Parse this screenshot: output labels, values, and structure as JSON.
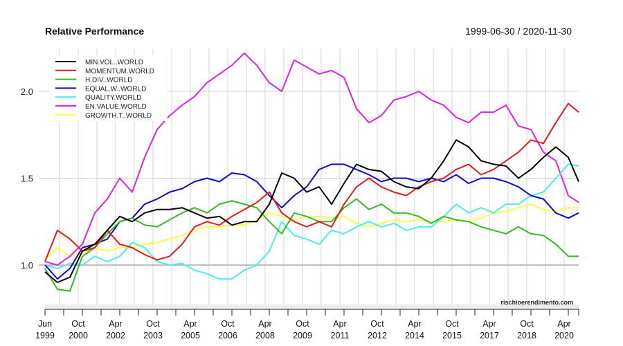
{
  "chart_data": {
    "type": "line",
    "title": "Relative Performance",
    "date_range": "1999-06-30 / 2020-11-30",
    "watermark": "rischioerendimento.com",
    "ylim": [
      0.78,
      2.25
    ],
    "yticks": [
      1.0,
      1.5,
      2.0
    ],
    "ytick_labels": [
      "1.0",
      "1.5",
      "2.0"
    ],
    "baseline": 1.0,
    "grid": true,
    "legend_position": "top-left",
    "xtick_labels": [
      [
        "Jun",
        "1999"
      ],
      [
        "Oct",
        "2000"
      ],
      [
        "Apr",
        "2002"
      ],
      [
        "Oct",
        "2003"
      ],
      [
        "Apr",
        "2005"
      ],
      [
        "Oct",
        "2006"
      ],
      [
        "Apr",
        "2008"
      ],
      [
        "Oct",
        "2009"
      ],
      [
        "Apr",
        "2011"
      ],
      [
        "Oct",
        "2012"
      ],
      [
        "Apr",
        "2014"
      ],
      [
        "Oct",
        "2015"
      ],
      [
        "Apr",
        "2017"
      ],
      [
        "Oct",
        "2018"
      ],
      [
        "Apr",
        "2020"
      ]
    ],
    "xtick_dates": [
      "1999-06",
      "2000-10",
      "2002-04",
      "2003-10",
      "2005-04",
      "2006-10",
      "2008-04",
      "2009-10",
      "2011-04",
      "2012-10",
      "2014-04",
      "2015-10",
      "2017-04",
      "2018-10",
      "2020-04"
    ],
    "x": [
      "1999-06",
      "1999-12",
      "2000-06",
      "2000-12",
      "2001-06",
      "2001-12",
      "2002-06",
      "2002-12",
      "2003-06",
      "2003-12",
      "2004-06",
      "2004-12",
      "2005-06",
      "2005-12",
      "2006-06",
      "2006-12",
      "2007-06",
      "2007-12",
      "2008-06",
      "2008-12",
      "2009-06",
      "2009-12",
      "2010-06",
      "2010-12",
      "2011-06",
      "2011-12",
      "2012-06",
      "2012-12",
      "2013-06",
      "2013-12",
      "2014-06",
      "2014-12",
      "2015-06",
      "2015-12",
      "2016-06",
      "2016-12",
      "2017-06",
      "2017-12",
      "2018-06",
      "2018-12",
      "2019-06",
      "2019-12",
      "2020-06",
      "2020-11"
    ],
    "series": [
      {
        "name": "MIN.VOL..WORLD",
        "color": "#000000",
        "values": [
          0.96,
          0.9,
          0.93,
          1.08,
          1.12,
          1.2,
          1.28,
          1.25,
          1.3,
          1.32,
          1.32,
          1.33,
          1.3,
          1.27,
          1.28,
          1.23,
          1.25,
          1.25,
          1.35,
          1.53,
          1.5,
          1.42,
          1.45,
          1.35,
          1.47,
          1.58,
          1.55,
          1.54,
          1.48,
          1.45,
          1.44,
          1.5,
          1.6,
          1.72,
          1.68,
          1.6,
          1.58,
          1.57,
          1.5,
          1.55,
          1.62,
          1.68,
          1.62,
          1.48
        ]
      },
      {
        "name": "MOMENTUM.WORLD",
        "color": "#e41a1c",
        "values": [
          1.02,
          1.2,
          1.15,
          1.08,
          1.1,
          1.2,
          1.12,
          1.1,
          1.06,
          1.03,
          1.05,
          1.12,
          1.22,
          1.25,
          1.23,
          1.28,
          1.32,
          1.36,
          1.42,
          1.3,
          1.25,
          1.22,
          1.25,
          1.22,
          1.35,
          1.45,
          1.5,
          1.45,
          1.42,
          1.4,
          1.45,
          1.48,
          1.5,
          1.55,
          1.58,
          1.52,
          1.55,
          1.6,
          1.65,
          1.72,
          1.7,
          1.82,
          1.93,
          1.88
        ]
      },
      {
        "name": "H.DIV..WORLD",
        "color": "#33bb22",
        "values": [
          0.98,
          0.86,
          0.85,
          1.05,
          1.1,
          1.18,
          1.25,
          1.27,
          1.23,
          1.22,
          1.26,
          1.3,
          1.33,
          1.3,
          1.35,
          1.37,
          1.35,
          1.33,
          1.25,
          1.18,
          1.3,
          1.28,
          1.25,
          1.25,
          1.33,
          1.38,
          1.32,
          1.35,
          1.3,
          1.3,
          1.28,
          1.24,
          1.28,
          1.26,
          1.25,
          1.22,
          1.2,
          1.18,
          1.22,
          1.18,
          1.17,
          1.12,
          1.05,
          1.05
        ]
      },
      {
        "name": "EQUAL.W..WORLD",
        "color": "#0a0ad0",
        "values": [
          1.0,
          0.92,
          0.98,
          1.1,
          1.12,
          1.15,
          1.25,
          1.27,
          1.35,
          1.38,
          1.42,
          1.44,
          1.48,
          1.5,
          1.48,
          1.53,
          1.52,
          1.48,
          1.4,
          1.33,
          1.4,
          1.45,
          1.55,
          1.58,
          1.58,
          1.55,
          1.52,
          1.48,
          1.5,
          1.5,
          1.48,
          1.5,
          1.48,
          1.52,
          1.47,
          1.5,
          1.5,
          1.48,
          1.45,
          1.4,
          1.38,
          1.3,
          1.27,
          1.3
        ]
      },
      {
        "name": "QUALITY.WORLD",
        "color": "#44eeee",
        "values": [
          1.0,
          0.98,
          1.01,
          1.0,
          1.05,
          1.02,
          1.05,
          1.13,
          1.1,
          1.02,
          1.0,
          1.01,
          0.97,
          0.95,
          0.92,
          0.92,
          0.97,
          1.0,
          1.08,
          1.25,
          1.17,
          1.15,
          1.12,
          1.2,
          1.18,
          1.22,
          1.25,
          1.22,
          1.24,
          1.2,
          1.22,
          1.22,
          1.28,
          1.35,
          1.3,
          1.33,
          1.3,
          1.35,
          1.35,
          1.4,
          1.42,
          1.5,
          1.58,
          1.57
        ]
      },
      {
        "name": "EN.VALUE.WORLD",
        "color": "#e020e8",
        "values": [
          1.02,
          1.0,
          1.05,
          1.12,
          1.3,
          1.38,
          1.5,
          1.42,
          1.62,
          1.78,
          1.86,
          1.92,
          1.97,
          2.05,
          2.1,
          2.15,
          2.22,
          2.15,
          2.05,
          2.0,
          2.18,
          2.14,
          2.1,
          2.12,
          2.08,
          1.9,
          1.82,
          1.86,
          1.95,
          1.97,
          2.0,
          1.95,
          1.92,
          1.85,
          1.82,
          1.88,
          1.88,
          1.92,
          1.8,
          1.78,
          1.65,
          1.6,
          1.4,
          1.36
        ]
      },
      {
        "name": "GROWTH.T..WORLD",
        "color": "#ffff44",
        "values": [
          1.03,
          1.1,
          1.05,
          1.07,
          1.1,
          1.08,
          1.1,
          1.1,
          1.12,
          1.13,
          1.15,
          1.17,
          1.2,
          1.22,
          1.22,
          1.23,
          1.23,
          1.26,
          1.3,
          1.28,
          1.26,
          1.28,
          1.28,
          1.27,
          1.28,
          1.24,
          1.22,
          1.24,
          1.26,
          1.25,
          1.26,
          1.25,
          1.25,
          1.26,
          1.25,
          1.27,
          1.3,
          1.31,
          1.33,
          1.35,
          1.32,
          1.31,
          1.33,
          1.33
        ]
      }
    ]
  }
}
